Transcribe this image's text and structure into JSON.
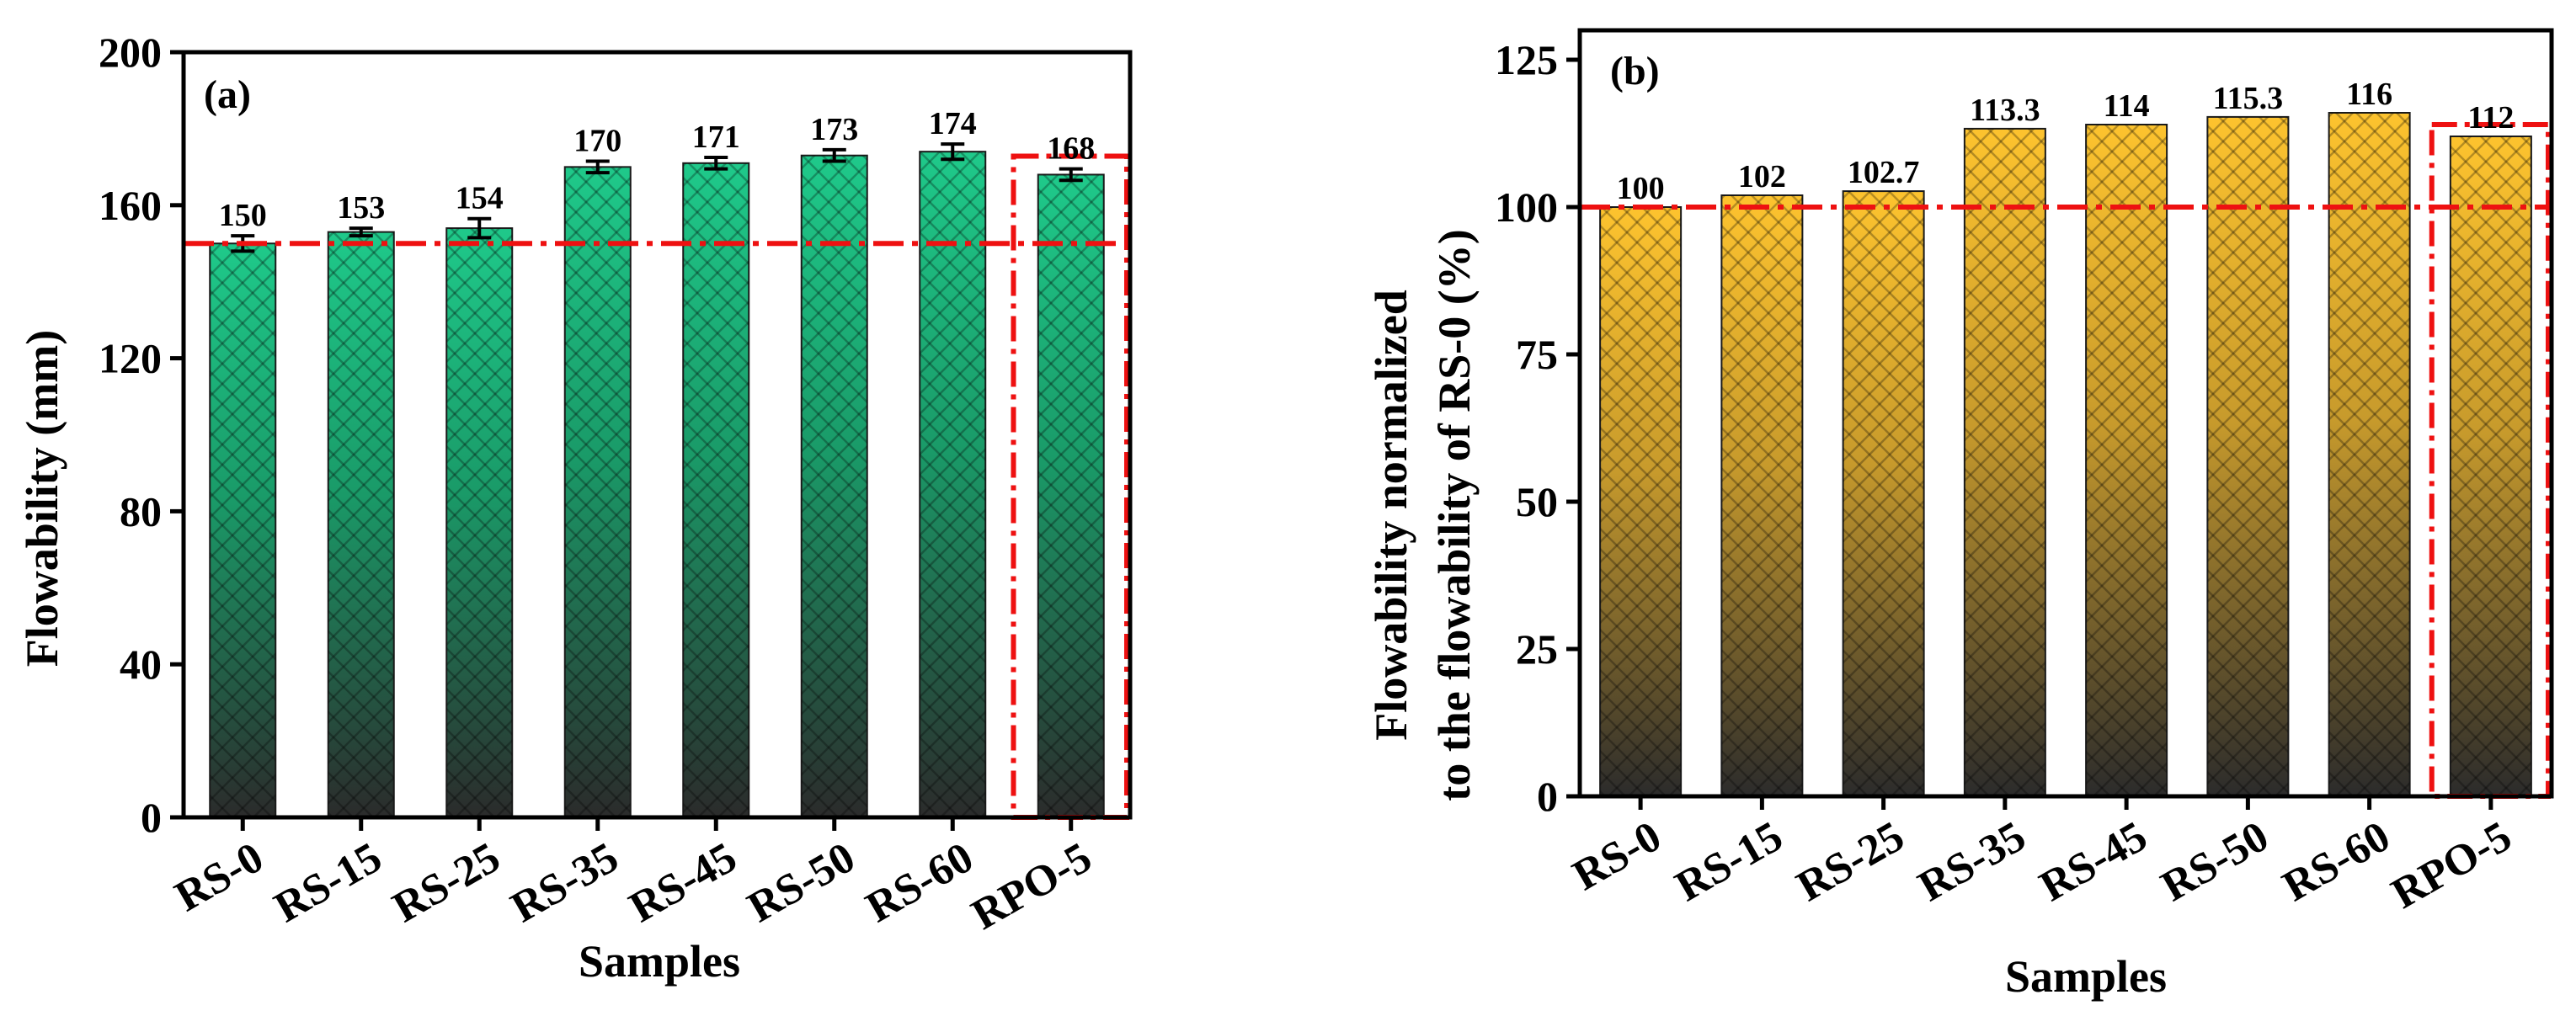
{
  "chart_data": [
    {
      "type": "bar",
      "panel_label": "(a)",
      "categories": [
        "RS-0",
        "RS-15",
        "RS-25",
        "RS-35",
        "RS-45",
        "RS-50",
        "RS-60",
        "RPO-5"
      ],
      "values": [
        150,
        153,
        154,
        170,
        171,
        173,
        174,
        168
      ],
      "value_labels": [
        "150",
        "153",
        "154",
        "170",
        "171",
        "173",
        "174",
        "168"
      ],
      "errors": [
        2,
        1,
        2.5,
        1.5,
        1.5,
        1.5,
        2,
        1.5
      ],
      "xlabel": "Samples",
      "ylabel": "Flowability (mm)",
      "ylim": [
        0,
        200
      ],
      "yticks": [
        0,
        40,
        80,
        120,
        160,
        200
      ],
      "ytick_labels": [
        "0",
        "40",
        "80",
        "120",
        "160",
        "200"
      ],
      "reference_line": 150,
      "highlighted_category": "RPO-5",
      "colors": {
        "top": "#1fc98a",
        "bottom": "#2b2b2b",
        "reference": "#ee1111"
      }
    },
    {
      "type": "bar",
      "panel_label": "(b)",
      "categories": [
        "RS-0",
        "RS-15",
        "RS-25",
        "RS-35",
        "RS-45",
        "RS-50",
        "RS-60",
        "RPO-5"
      ],
      "values": [
        100,
        102,
        102.7,
        113.3,
        114,
        115.3,
        116,
        112
      ],
      "value_labels": [
        "100",
        "102",
        "102.7",
        "113.3",
        "114",
        "115.3",
        "116",
        "112"
      ],
      "xlabel": "Samples",
      "ylabel_lines": [
        "Flowability normalized",
        "to the flowability of RS-0 (%)"
      ],
      "ylim": [
        0,
        130
      ],
      "yticks": [
        0,
        25,
        50,
        75,
        100,
        125
      ],
      "ytick_labels": [
        "0",
        "25",
        "50",
        "75",
        "100",
        "125"
      ],
      "reference_line": 100,
      "highlighted_category": "RPO-5",
      "colors": {
        "top": "#fdc32e",
        "bottom": "#2b2b2b",
        "reference": "#ee1111"
      }
    }
  ]
}
